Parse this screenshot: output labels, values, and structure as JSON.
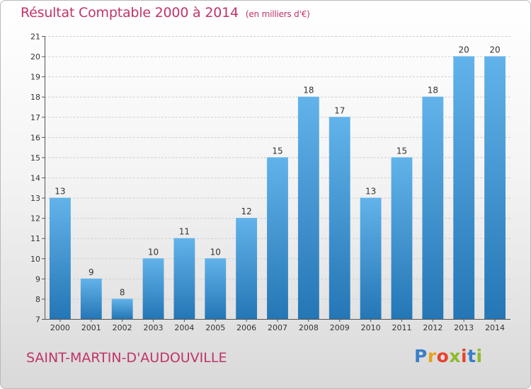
{
  "header": {
    "title": "Résultat Comptable 2000 à 2014",
    "subtitle": "(en milliers d'€)"
  },
  "footer": {
    "commune": "SAINT-MARTIN-D'AUDOUVILLE",
    "logo_letters": [
      "P",
      "r",
      "o",
      "x",
      "i",
      "t",
      "i"
    ],
    "logo_colors": [
      "#3a7fc8",
      "#e8a21a",
      "#e8432e",
      "#8dbb2a",
      "#e8432e",
      "#3a7fc8",
      "#8dbb2a"
    ]
  },
  "colors": {
    "bar_light": "#62b3ea",
    "bar_dark": "#2476b5",
    "title": "#c0336a"
  },
  "chart_data": {
    "type": "bar",
    "categories": [
      "2000",
      "2001",
      "2002",
      "2003",
      "2004",
      "2005",
      "2006",
      "2007",
      "2008",
      "2009",
      "2010",
      "2011",
      "2012",
      "2013",
      "2014"
    ],
    "values": [
      13,
      9,
      8,
      10,
      11,
      10,
      12,
      15,
      18,
      17,
      13,
      15,
      18,
      20,
      20
    ],
    "title": "Résultat Comptable 2000 à 2014",
    "subtitle": "(en milliers d'€)",
    "xlabel": "",
    "ylabel": "",
    "ylim": [
      7,
      21
    ],
    "yticks": [
      7,
      8,
      9,
      10,
      11,
      12,
      13,
      14,
      15,
      16,
      17,
      18,
      19,
      20,
      21
    ],
    "grid": true,
    "legend": "none"
  }
}
